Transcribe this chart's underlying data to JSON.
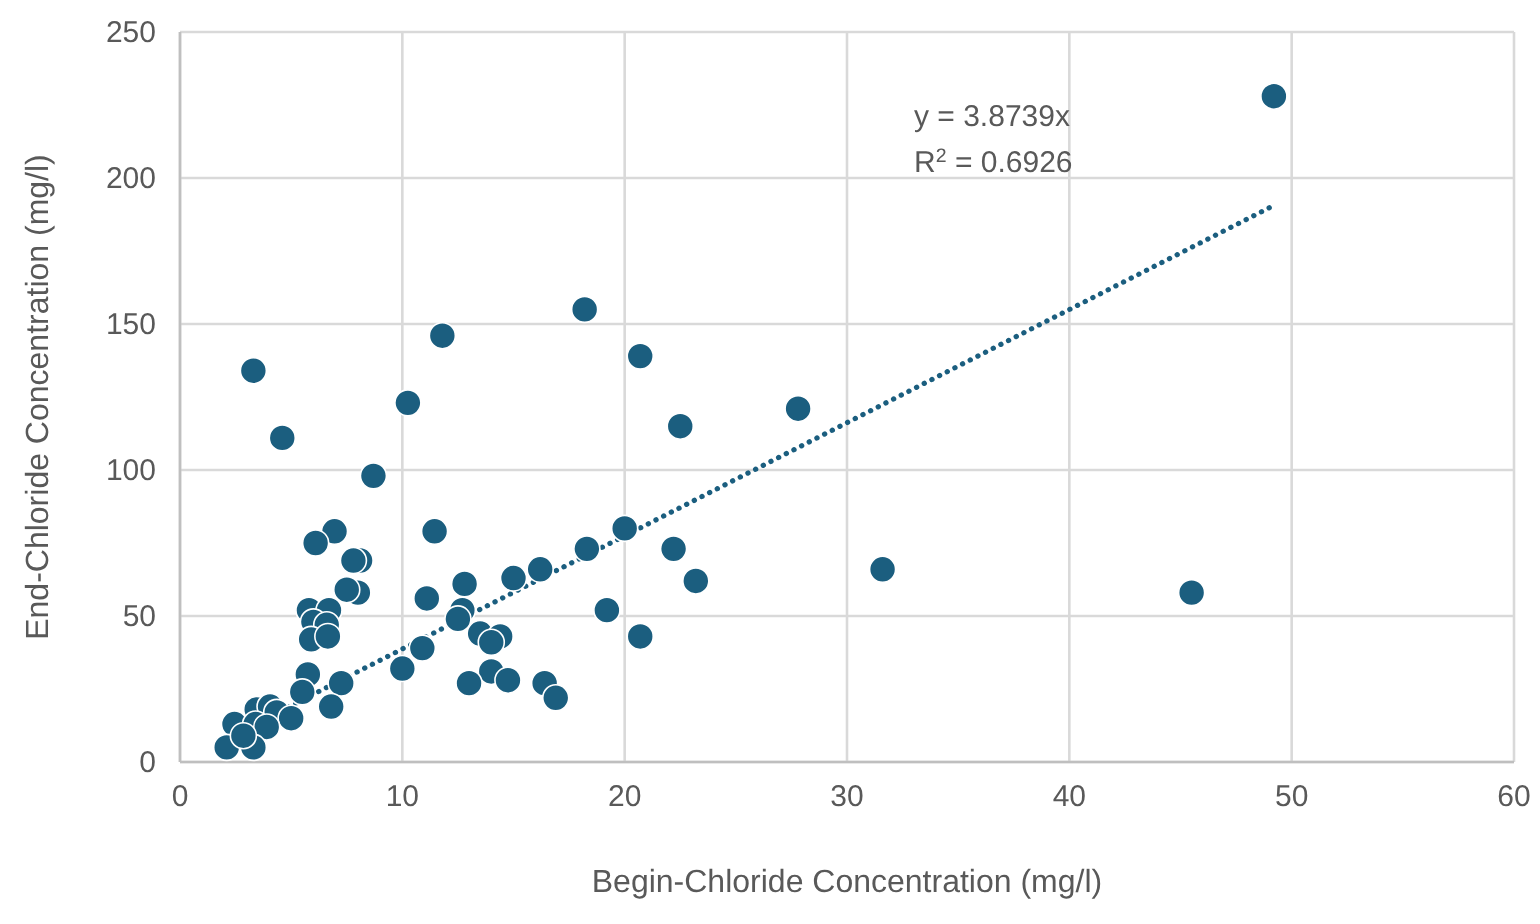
{
  "chart_data": {
    "type": "scatter",
    "xlabel": "Begin-Chloride Concentration (mg/l)",
    "ylabel": "End-Chloride Concentration (mg/l)",
    "xlim": [
      0,
      60
    ],
    "xticks": [
      0,
      10,
      20,
      30,
      40,
      50,
      60
    ],
    "ylim": [
      0,
      250
    ],
    "yticks": [
      0,
      50,
      100,
      150,
      200,
      250
    ],
    "grid": true,
    "marker": "circle",
    "annotations": [
      "y = 3.8739x",
      "R$^{2}$ = 0.6926"
    ],
    "series": [
      {
        "color": "#1b5e7f",
        "x": [
          49.2,
          18.2,
          11.8,
          20.7,
          3.3,
          10.25,
          27.8,
          22.5,
          4.6,
          8.7,
          11.45,
          8.1,
          8.0,
          20.0,
          18.3,
          22.2,
          23.2,
          16.2,
          15.0,
          12.8,
          11.1,
          12.7,
          12.5,
          19.2,
          20.7,
          13.5,
          14.4,
          14.0,
          10.9,
          10.0,
          14.0,
          13.0,
          14.75,
          16.4,
          16.9,
          6.95,
          6.1,
          7.8,
          7.5,
          5.8,
          6.7,
          6.0,
          6.6,
          5.9,
          6.65,
          5.75,
          7.25,
          5.5,
          6.8,
          3.45,
          4.05,
          4.35,
          5.0,
          2.45,
          3.4,
          3.9,
          2.1,
          3.3,
          2.85,
          31.6,
          45.5
        ],
        "values": [
          228,
          155,
          146,
          139,
          134,
          123,
          121,
          115,
          111,
          98,
          79,
          69,
          58,
          80,
          73,
          73,
          62,
          66,
          63,
          61,
          56,
          52,
          49,
          52,
          43,
          44,
          43,
          41,
          39,
          32,
          31,
          27,
          28,
          27,
          22,
          79,
          75,
          69,
          59,
          52,
          52,
          48,
          47,
          42,
          43,
          30,
          27,
          24,
          19,
          18,
          19,
          17,
          15,
          13,
          13,
          12,
          5,
          5,
          9,
          66,
          58
        ]
      },
      {
        "type": "line",
        "color": "#1b5e7f",
        "line_style": "dotted",
        "marker": "none",
        "x": [
          2.1,
          49.2
        ],
        "values": [
          8.1,
          190.6
        ]
      }
    ]
  }
}
